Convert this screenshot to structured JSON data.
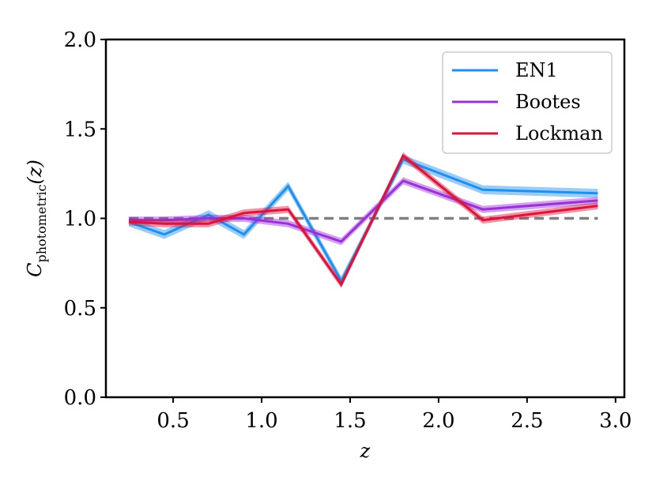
{
  "chart_data": {
    "type": "line",
    "title": "",
    "xlabel": "z",
    "ylabel": "C_photometric(z)",
    "ylabel_main": "C",
    "ylabel_sub": "photometric",
    "ylabel_arg": "(z)",
    "xlim": [
      0.12,
      3.05
    ],
    "ylim": [
      0.0,
      2.0
    ],
    "xticks": [
      0.5,
      1.0,
      1.5,
      2.0,
      2.5,
      3.0
    ],
    "xtick_labels": [
      "0.5",
      "1.0",
      "1.5",
      "2.0",
      "2.5",
      "3.0"
    ],
    "yticks": [
      0.0,
      0.5,
      1.0,
      1.5,
      2.0
    ],
    "ytick_labels": [
      "0.0",
      "0.5",
      "1.0",
      "1.5",
      "2.0"
    ],
    "grid": false,
    "legend_position": "top-right",
    "reference_line": {
      "y": 1.0,
      "style": "dashed",
      "color": "#808080"
    },
    "series": [
      {
        "name": "EN1",
        "color": "#1f8ff0",
        "x": [
          0.25,
          0.45,
          0.7,
          0.9,
          1.15,
          1.45,
          1.8,
          2.25,
          2.9
        ],
        "y": [
          0.98,
          0.91,
          1.02,
          0.91,
          1.18,
          0.65,
          1.33,
          1.16,
          1.14
        ],
        "band": 0.025
      },
      {
        "name": "Bootes",
        "color": "#9b30d9",
        "x": [
          0.25,
          0.45,
          0.7,
          0.9,
          1.15,
          1.45,
          1.8,
          2.25,
          2.9
        ],
        "y": [
          0.99,
          0.99,
          1.0,
          1.0,
          0.97,
          0.87,
          1.21,
          1.05,
          1.1
        ],
        "band": 0.02
      },
      {
        "name": "Lockman",
        "color": "#dc143c",
        "x": [
          0.25,
          0.45,
          0.7,
          0.9,
          1.15,
          1.45,
          1.8,
          2.25,
          2.9
        ],
        "y": [
          0.98,
          0.97,
          0.97,
          1.03,
          1.05,
          0.63,
          1.35,
          0.99,
          1.07
        ],
        "band": 0.02
      }
    ]
  }
}
